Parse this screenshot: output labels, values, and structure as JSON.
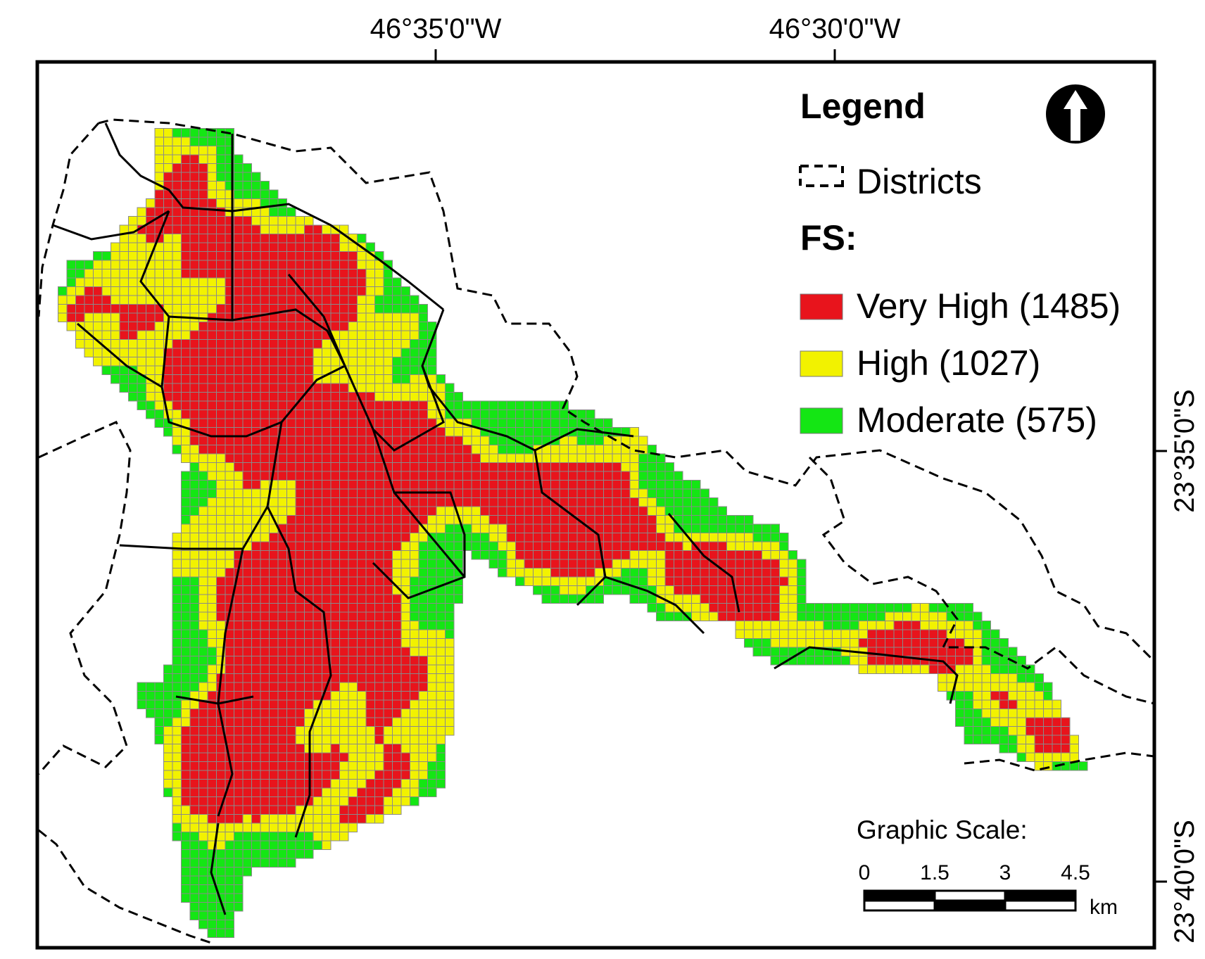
{
  "graticule": {
    "longitudes": [
      "46°35'0\"W",
      "46°30'0\"W"
    ],
    "latitudes": [
      "23°35'0\"S",
      "23°40'0\"S"
    ]
  },
  "legend": {
    "title": "Legend",
    "districts_label": "Districts",
    "fs_label": "FS:",
    "classes": [
      {
        "label": "Very High (1485)",
        "color": "#e8141c"
      },
      {
        "label": "High (1027)",
        "color": "#f2f200"
      },
      {
        "label": "Moderate (575)",
        "color": "#14e614"
      }
    ]
  },
  "scale": {
    "title": "Graphic Scale:",
    "ticks": [
      0,
      1.5,
      3,
      4.5
    ],
    "unit": "km"
  }
}
